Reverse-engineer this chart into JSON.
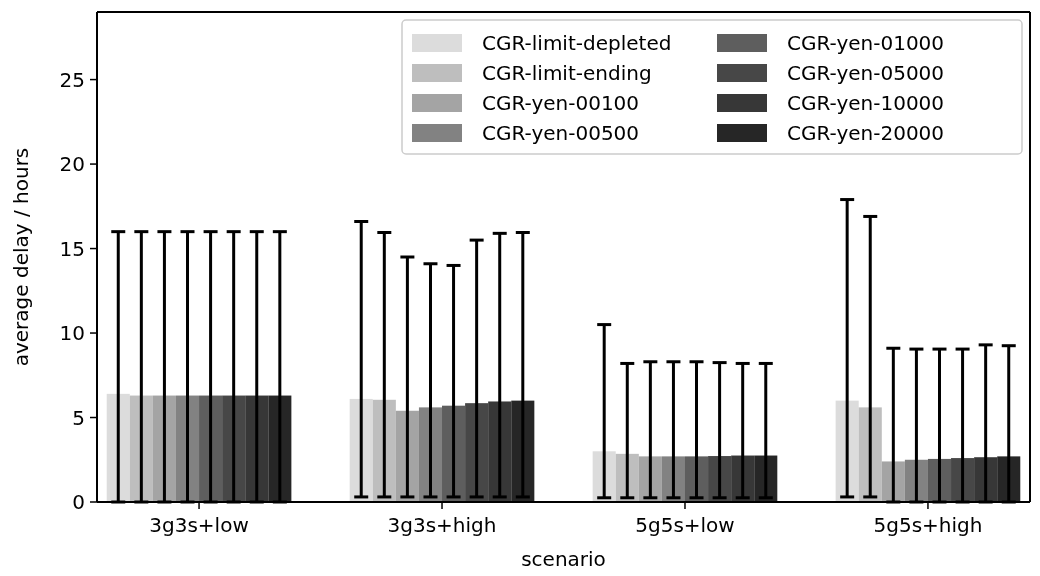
{
  "chart_data": {
    "type": "bar",
    "xlabel": "scenario",
    "ylabel": "average delay / hours",
    "categories": [
      "3g3s+low",
      "3g3s+high",
      "5g5s+low",
      "5g5s+high"
    ],
    "ylim": [
      0,
      29
    ],
    "yticks": [
      0,
      5,
      10,
      15,
      20,
      25
    ],
    "grid": false,
    "legend": "top right",
    "series": [
      {
        "name": "CGR-limit-depleted",
        "color": "#dcdcdc",
        "values": [
          6.4,
          6.1,
          3.0,
          6.0
        ],
        "errors": [
          [
            0,
            16
          ],
          [
            0.3,
            16.6
          ],
          [
            0.25,
            10.5
          ],
          [
            0.3,
            17.9
          ]
        ]
      },
      {
        "name": "CGR-limit-ending",
        "color": "#bebebe",
        "values": [
          6.3,
          6.05,
          2.85,
          5.6
        ],
        "errors": [
          [
            0,
            16
          ],
          [
            0.3,
            15.95
          ],
          [
            0.25,
            8.2
          ],
          [
            0.3,
            16.9
          ]
        ]
      },
      {
        "name": "CGR-yen-00100",
        "color": "#a4a4a4",
        "values": [
          6.3,
          5.4,
          2.7,
          2.4
        ],
        "errors": [
          [
            0,
            16
          ],
          [
            0.3,
            14.5
          ],
          [
            0.25,
            8.3
          ],
          [
            0,
            9.1
          ]
        ]
      },
      {
        "name": "CGR-yen-00500",
        "color": "#828282",
        "values": [
          6.3,
          5.6,
          2.7,
          2.5
        ],
        "errors": [
          [
            0,
            16
          ],
          [
            0.3,
            14.1
          ],
          [
            0.25,
            8.3
          ],
          [
            0,
            9.05
          ]
        ]
      },
      {
        "name": "CGR-yen-01000",
        "color": "#5e5e5e",
        "values": [
          6.3,
          5.7,
          2.7,
          2.55
        ],
        "errors": [
          [
            0,
            16
          ],
          [
            0.3,
            14.0
          ],
          [
            0.25,
            8.3
          ],
          [
            0,
            9.05
          ]
        ]
      },
      {
        "name": "CGR-yen-05000",
        "color": "#474747",
        "values": [
          6.3,
          5.85,
          2.72,
          2.6
        ],
        "errors": [
          [
            0,
            16
          ],
          [
            0.3,
            15.5
          ],
          [
            0.25,
            8.25
          ],
          [
            0,
            9.05
          ]
        ]
      },
      {
        "name": "CGR-yen-10000",
        "color": "#373737",
        "values": [
          6.3,
          5.95,
          2.75,
          2.65
        ],
        "errors": [
          [
            0,
            16
          ],
          [
            0.3,
            15.9
          ],
          [
            0.25,
            8.2
          ],
          [
            0,
            9.3
          ]
        ]
      },
      {
        "name": "CGR-yen-20000",
        "color": "#262626",
        "values": [
          6.3,
          6.0,
          2.75,
          2.7
        ],
        "errors": [
          [
            0,
            16
          ],
          [
            0.3,
            15.95
          ],
          [
            0.25,
            8.2
          ],
          [
            0,
            9.25
          ]
        ]
      }
    ]
  }
}
